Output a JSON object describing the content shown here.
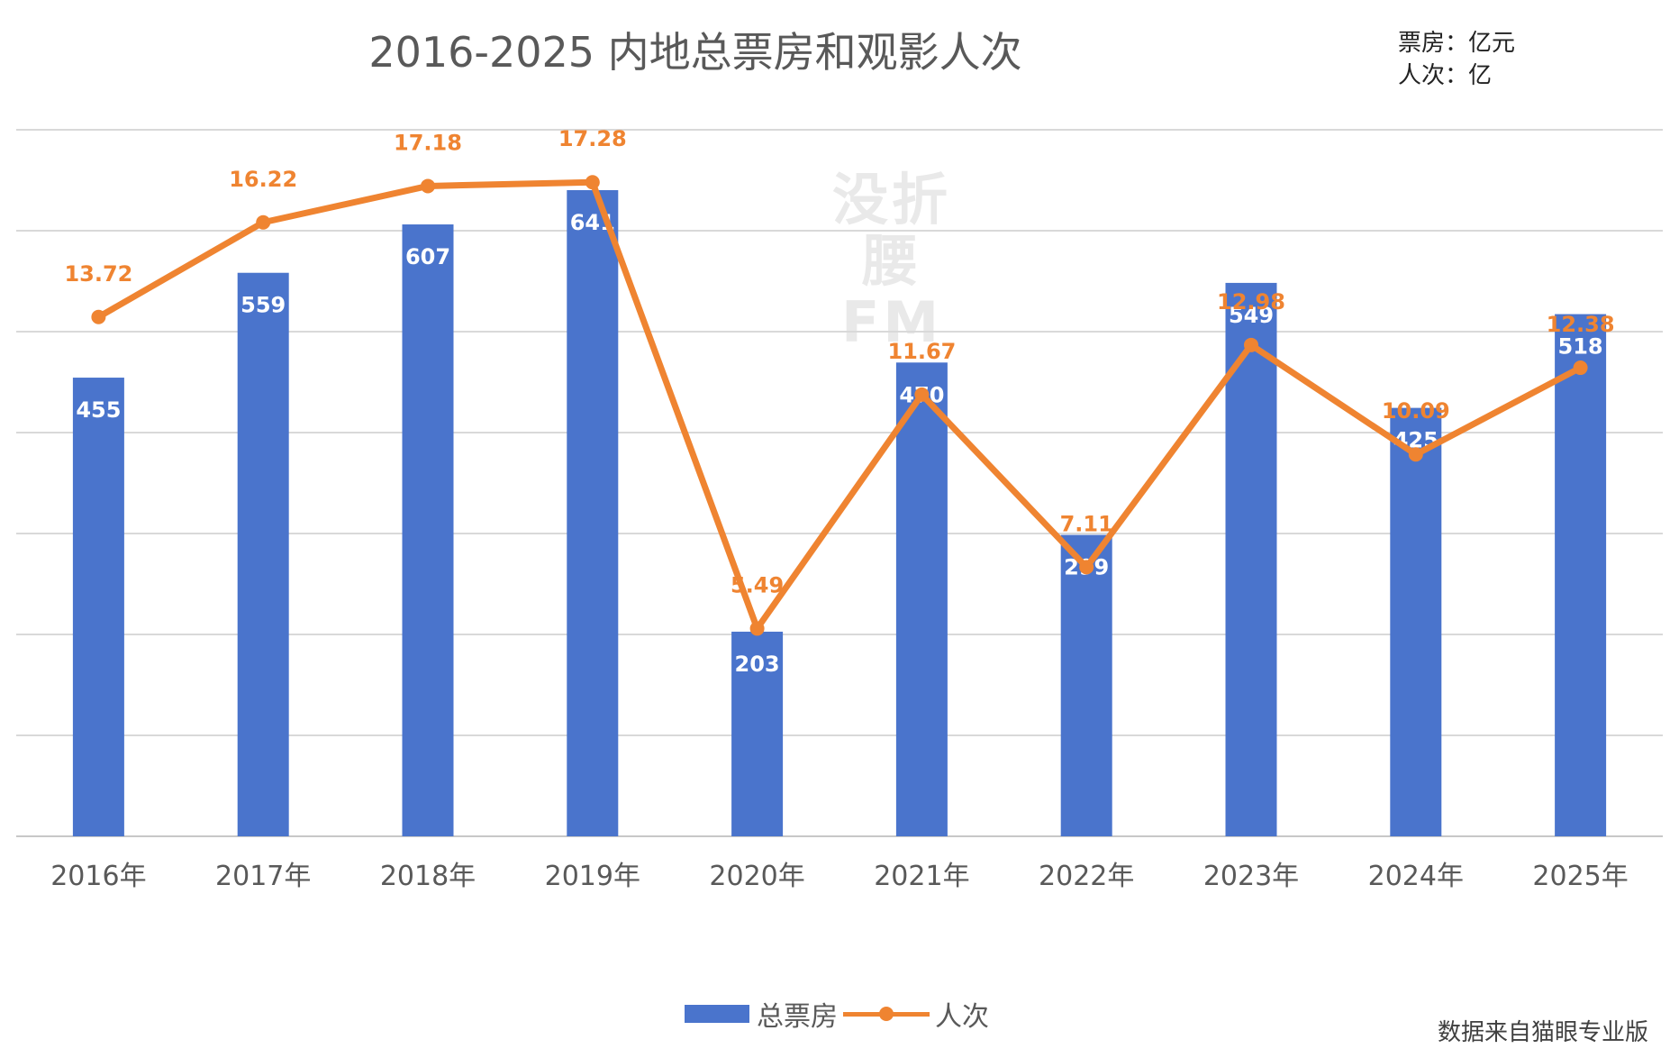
{
  "chart_data": {
    "type": "bar+line",
    "title": "2016-2025 内地总票房和观影人次",
    "unit_note": [
      "票房：亿元",
      "人次：亿"
    ],
    "categories": [
      "2016年",
      "2017年",
      "2018年",
      "2019年",
      "2020年",
      "2021年",
      "2022年",
      "2023年",
      "2024年",
      "2025年"
    ],
    "series": [
      {
        "name": "总票房",
        "type": "bar",
        "values": [
          455,
          559,
          607,
          641,
          203,
          470,
          299,
          549,
          425,
          518
        ],
        "color": "#4a74cc"
      },
      {
        "name": "人次",
        "type": "line",
        "values": [
          13.72,
          16.22,
          17.18,
          17.28,
          5.49,
          11.67,
          7.11,
          12.98,
          10.09,
          12.38
        ],
        "color": "#ef8431"
      }
    ],
    "watermark": [
      "没折",
      "腰FM"
    ],
    "legend_position": "bottom",
    "grid": true,
    "source": "数据来自猫眼专业版"
  }
}
